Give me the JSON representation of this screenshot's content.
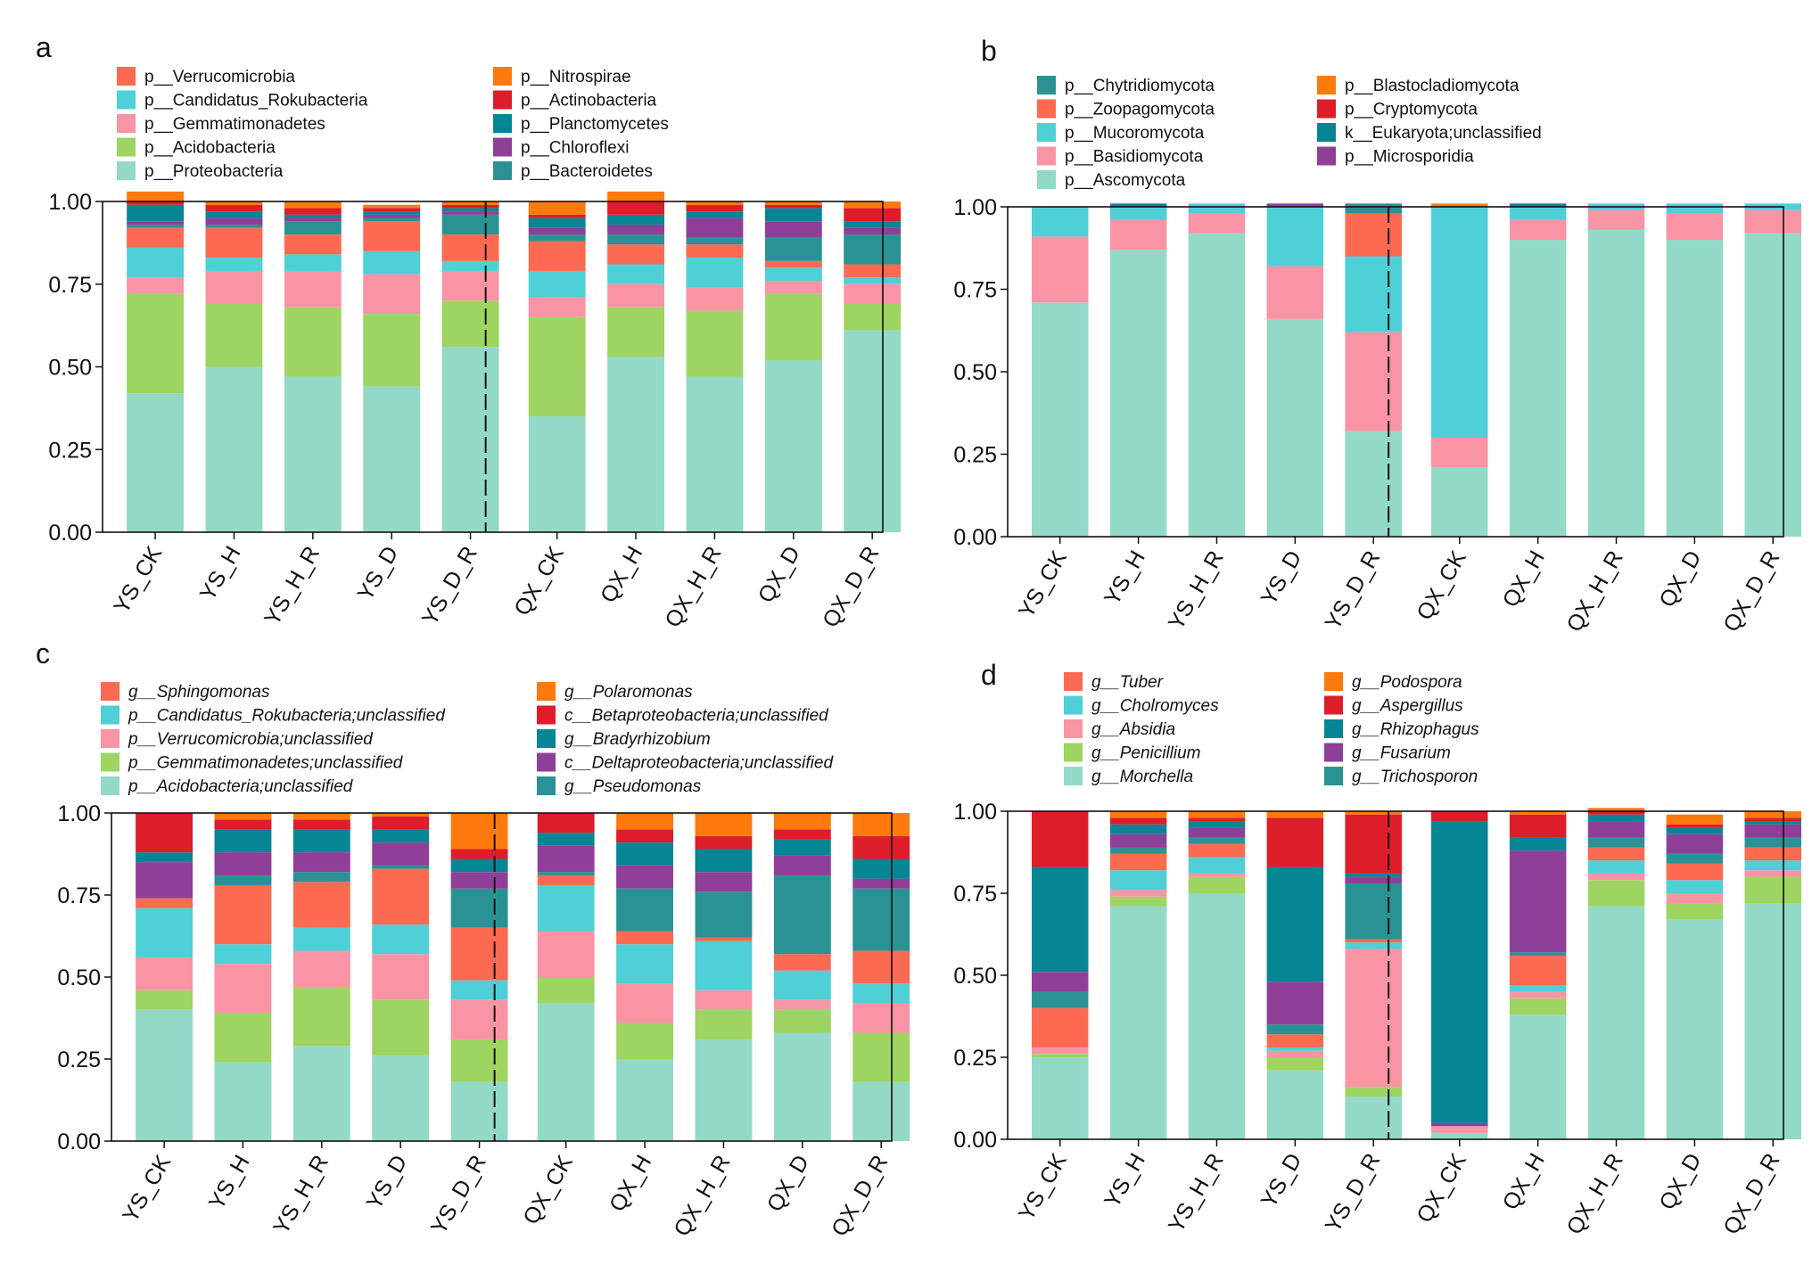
{
  "chart_data": [
    {
      "type": "bar",
      "stacked": true,
      "panel_label": "a",
      "categories": [
        "YS_CK",
        "YS_H",
        "YS_H_R",
        "YS_D",
        "YS_D_R",
        "QX_CK",
        "QX_H",
        "QX_H_R",
        "QX_D",
        "QX_D_R"
      ],
      "ylim": [
        0,
        1
      ],
      "yticks": [
        "0.00",
        "0.25",
        "0.50",
        "0.75",
        "1.00"
      ],
      "legend_italic": false,
      "legend_columns": [
        [
          "p__Verrucomicrobia",
          "p__Candidatus_Rokubacteria",
          "p__Gemmatimonadetes",
          "p__Acidobacteria",
          "p__Proteobacteria"
        ],
        [
          "p__Nitrospirae",
          "p__Actinobacteria",
          "p__Planctomycetes",
          "p__Chloroflexi",
          "p__Bacteroidetes"
        ]
      ],
      "series": [
        {
          "name": "p__Proteobacteria",
          "color": "#93d9c8",
          "values": [
            0.42,
            0.5,
            0.47,
            0.44,
            0.56,
            0.35,
            0.53,
            0.47,
            0.52,
            0.61
          ]
        },
        {
          "name": "p__Acidobacteria",
          "color": "#9dd462",
          "values": [
            0.3,
            0.19,
            0.21,
            0.22,
            0.14,
            0.3,
            0.15,
            0.2,
            0.2,
            0.08
          ]
        },
        {
          "name": "p__Gemmatimonadetes",
          "color": "#f994a5",
          "values": [
            0.05,
            0.1,
            0.11,
            0.12,
            0.09,
            0.06,
            0.07,
            0.07,
            0.04,
            0.06
          ]
        },
        {
          "name": "p__Candidatus_Rokubacteria",
          "color": "#4fcfd6",
          "values": [
            0.09,
            0.04,
            0.05,
            0.07,
            0.03,
            0.08,
            0.06,
            0.09,
            0.04,
            0.02
          ]
        },
        {
          "name": "p__Verrucomicrobia",
          "color": "#fd6a52",
          "values": [
            0.06,
            0.09,
            0.06,
            0.09,
            0.08,
            0.09,
            0.06,
            0.04,
            0.02,
            0.04
          ]
        },
        {
          "name": "p__Bacteroidetes",
          "color": "#2a9294",
          "values": [
            0.01,
            0.01,
            0.04,
            0.01,
            0.06,
            0.02,
            0.03,
            0.02,
            0.07,
            0.09
          ]
        },
        {
          "name": "p__Chloroflexi",
          "color": "#8f3f98",
          "values": [
            0.01,
            0.02,
            0.01,
            0.01,
            0.01,
            0.02,
            0.03,
            0.06,
            0.05,
            0.02
          ]
        },
        {
          "name": "p__Planctomycetes",
          "color": "#068694",
          "values": [
            0.05,
            0.02,
            0.01,
            0.01,
            0.01,
            0.03,
            0.03,
            0.02,
            0.04,
            0.02
          ]
        },
        {
          "name": "p__Actinobacteria",
          "color": "#de1d2b",
          "values": [
            0.01,
            0.02,
            0.02,
            0.01,
            0.01,
            0.01,
            0.04,
            0.02,
            0.01,
            0.04
          ]
        },
        {
          "name": "p__Nitrospirae",
          "color": "#fe7a0c",
          "values": [
            0.03,
            0.01,
            0.02,
            0.01,
            0.01,
            0.04,
            0.03,
            0.01,
            0.01,
            0.02
          ]
        }
      ]
    },
    {
      "type": "bar",
      "stacked": true,
      "panel_label": "b",
      "categories": [
        "YS_CK",
        "YS_H",
        "YS_H_R",
        "YS_D",
        "YS_D_R",
        "QX_CK",
        "QX_H",
        "QX_H_R",
        "QX_D",
        "QX_D_R"
      ],
      "ylim": [
        0,
        1
      ],
      "yticks": [
        "0.00",
        "0.25",
        "0.50",
        "0.75",
        "1.00"
      ],
      "legend_italic": false,
      "legend_columns": [
        [
          "p__Chytridiomycota",
          "p__Zoopagomycota",
          "p__Mucoromycota",
          "p__Basidiomycota",
          "p__Ascomycota"
        ],
        [
          "p__Blastocladiomycota",
          "p__Cryptomycota",
          "k__Eukaryota;unclassified",
          "p__Microsporidia"
        ]
      ],
      "series": [
        {
          "name": "p__Ascomycota",
          "color": "#93d9c8",
          "values": [
            0.71,
            0.87,
            0.92,
            0.66,
            0.32,
            0.21,
            0.9,
            0.93,
            0.9,
            0.92
          ]
        },
        {
          "name": "p__Basidiomycota",
          "color": "#f994a5",
          "values": [
            0.2,
            0.09,
            0.06,
            0.16,
            0.3,
            0.09,
            0.06,
            0.06,
            0.08,
            0.07
          ]
        },
        {
          "name": "p__Mucoromycota",
          "color": "#4fcfd6",
          "values": [
            0.09,
            0.04,
            0.03,
            0.18,
            0.23,
            0.7,
            0.04,
            0.02,
            0.03,
            0.02
          ]
        },
        {
          "name": "p__Zoopagomycota",
          "color": "#fd6a52",
          "values": [
            0.0,
            0.0,
            0.0,
            0.0,
            0.13,
            0.0,
            0.0,
            0.0,
            0.0,
            0.0
          ]
        },
        {
          "name": "p__Chytridiomycota",
          "color": "#2a9294",
          "values": [
            0.0,
            0.0,
            0.0,
            0.0,
            0.03,
            0.0,
            0.0,
            0.0,
            0.0,
            0.0
          ]
        },
        {
          "name": "p__Microsporidia",
          "color": "#8f3f98",
          "values": [
            0.0,
            0.0,
            0.0,
            0.01,
            0.0,
            0.0,
            0.0,
            0.0,
            0.0,
            0.0
          ]
        },
        {
          "name": "k__Eukaryota;unclassified",
          "color": "#068694",
          "values": [
            0.0,
            0.01,
            0.0,
            0.0,
            0.0,
            0.0,
            0.01,
            0.0,
            0.0,
            0.0
          ]
        },
        {
          "name": "p__Cryptomycota",
          "color": "#de1d2b",
          "values": [
            0.0,
            0.0,
            0.0,
            0.0,
            0.0,
            0.0,
            0.0,
            0.0,
            0.0,
            0.0
          ]
        },
        {
          "name": "p__Blastocladiomycota",
          "color": "#fe7a0c",
          "values": [
            0.0,
            0.0,
            0.0,
            0.0,
            0.0,
            0.01,
            0.0,
            0.0,
            0.0,
            0.0
          ]
        }
      ]
    },
    {
      "type": "bar",
      "stacked": true,
      "panel_label": "c",
      "categories": [
        "YS_CK",
        "YS_H",
        "YS_H_R",
        "YS_D",
        "YS_D_R",
        "QX_CK",
        "QX_H",
        "QX_H_R",
        "QX_D",
        "QX_D_R"
      ],
      "ylim": [
        0,
        1
      ],
      "yticks": [
        "0.00",
        "0.25",
        "0.50",
        "0.75",
        "1.00"
      ],
      "legend_italic": true,
      "legend_columns": [
        [
          "g__Sphingomonas",
          "p__Candidatus_Rokubacteria;unclassified",
          "p__Verrucomicrobia;unclassified",
          "p__Gemmatimonadetes;unclassified",
          "p__Acidobacteria;unclassified"
        ],
        [
          "g__Polaromonas",
          "c__Betaproteobacteria;unclassified",
          "g__Bradyrhizobium",
          "c__Deltaproteobacteria;unclassified",
          "g__Pseudomonas"
        ]
      ],
      "series": [
        {
          "name": "p__Acidobacteria;unclassified",
          "color": "#93d9c8",
          "values": [
            0.4,
            0.24,
            0.29,
            0.26,
            0.18,
            0.42,
            0.25,
            0.31,
            0.33,
            0.18
          ]
        },
        {
          "name": "p__Gemmatimonadetes;unclassified",
          "color": "#9dd462",
          "values": [
            0.06,
            0.15,
            0.18,
            0.17,
            0.13,
            0.08,
            0.11,
            0.09,
            0.07,
            0.15
          ]
        },
        {
          "name": "p__Verrucomicrobia;unclassified",
          "color": "#f994a5",
          "values": [
            0.1,
            0.15,
            0.11,
            0.14,
            0.12,
            0.14,
            0.12,
            0.06,
            0.03,
            0.09
          ]
        },
        {
          "name": "p__Candidatus_Rokubacteria;unclassified",
          "color": "#4fcfd6",
          "values": [
            0.15,
            0.06,
            0.07,
            0.09,
            0.06,
            0.14,
            0.12,
            0.15,
            0.09,
            0.06
          ]
        },
        {
          "name": "g__Sphingomonas",
          "color": "#fd6a52",
          "values": [
            0.03,
            0.18,
            0.14,
            0.17,
            0.16,
            0.03,
            0.04,
            0.01,
            0.05,
            0.1
          ]
        },
        {
          "name": "g__Pseudomonas",
          "color": "#2a9294",
          "values": [
            0.0,
            0.03,
            0.03,
            0.01,
            0.12,
            0.01,
            0.13,
            0.14,
            0.24,
            0.19
          ]
        },
        {
          "name": "c__Deltaproteobacteria;unclassified",
          "color": "#8f3f98",
          "values": [
            0.11,
            0.07,
            0.06,
            0.07,
            0.05,
            0.08,
            0.07,
            0.06,
            0.06,
            0.03
          ]
        },
        {
          "name": "g__Bradyrhizobium",
          "color": "#068694",
          "values": [
            0.03,
            0.07,
            0.07,
            0.04,
            0.04,
            0.04,
            0.07,
            0.07,
            0.05,
            0.06
          ]
        },
        {
          "name": "c__Betaproteobacteria;unclassified",
          "color": "#de1d2b",
          "values": [
            0.12,
            0.03,
            0.03,
            0.04,
            0.03,
            0.06,
            0.04,
            0.04,
            0.03,
            0.07
          ]
        },
        {
          "name": "g__Polaromonas",
          "color": "#fe7a0c",
          "values": [
            0.0,
            0.02,
            0.02,
            0.01,
            0.11,
            0.0,
            0.05,
            0.07,
            0.05,
            0.07
          ]
        }
      ]
    },
    {
      "type": "bar",
      "stacked": true,
      "panel_label": "d",
      "categories": [
        "YS_CK",
        "YS_H",
        "YS_H_R",
        "YS_D",
        "YS_D_R",
        "QX_CK",
        "QX_H",
        "QX_H_R",
        "QX_D",
        "QX_D_R"
      ],
      "ylim": [
        0,
        1
      ],
      "yticks": [
        "0.00",
        "0.25",
        "0.50",
        "0.75",
        "1.00"
      ],
      "legend_italic": true,
      "legend_columns": [
        [
          "g__Tuber",
          "g__Cholromyces",
          "g__Absidia",
          "g__Penicillium",
          "g__Morchella"
        ],
        [
          "g__Podospora",
          "g__Aspergillus",
          "g__Rhizophagus",
          "g__Fusarium",
          "g__Trichosporon"
        ]
      ],
      "series": [
        {
          "name": "g__Morchella",
          "color": "#93d9c8",
          "values": [
            0.25,
            0.71,
            0.75,
            0.21,
            0.13,
            0.02,
            0.38,
            0.71,
            0.67,
            0.72
          ]
        },
        {
          "name": "g__Penicillium",
          "color": "#9dd462",
          "values": [
            0.01,
            0.03,
            0.05,
            0.04,
            0.03,
            0.0,
            0.05,
            0.08,
            0.05,
            0.08
          ]
        },
        {
          "name": "g__Absidia",
          "color": "#f994a5",
          "values": [
            0.02,
            0.02,
            0.01,
            0.02,
            0.42,
            0.02,
            0.02,
            0.02,
            0.03,
            0.02
          ]
        },
        {
          "name": "g__Cholromyces",
          "color": "#4fcfd6",
          "values": [
            0.0,
            0.06,
            0.05,
            0.01,
            0.02,
            0.0,
            0.02,
            0.04,
            0.04,
            0.03
          ]
        },
        {
          "name": "g__Tuber",
          "color": "#fd6a52",
          "values": [
            0.12,
            0.05,
            0.04,
            0.04,
            0.01,
            0.0,
            0.09,
            0.04,
            0.05,
            0.04
          ]
        },
        {
          "name": "g__Trichosporon",
          "color": "#2a9294",
          "values": [
            0.05,
            0.02,
            0.02,
            0.03,
            0.17,
            0.0,
            0.01,
            0.03,
            0.03,
            0.03
          ]
        },
        {
          "name": "g__Fusarium",
          "color": "#8f3f98",
          "values": [
            0.06,
            0.04,
            0.03,
            0.13,
            0.02,
            0.01,
            0.31,
            0.05,
            0.06,
            0.04
          ]
        },
        {
          "name": "g__Rhizophagus",
          "color": "#068694",
          "values": [
            0.32,
            0.03,
            0.02,
            0.35,
            0.01,
            0.92,
            0.04,
            0.02,
            0.02,
            0.01
          ]
        },
        {
          "name": "g__Aspergillus",
          "color": "#de1d2b",
          "values": [
            0.17,
            0.02,
            0.01,
            0.15,
            0.18,
            0.03,
            0.07,
            0.01,
            0.01,
            0.01
          ]
        },
        {
          "name": "g__Podospora",
          "color": "#fe7a0c",
          "values": [
            0.0,
            0.02,
            0.02,
            0.02,
            0.01,
            0.0,
            0.01,
            0.01,
            0.03,
            0.02
          ]
        }
      ]
    }
  ]
}
